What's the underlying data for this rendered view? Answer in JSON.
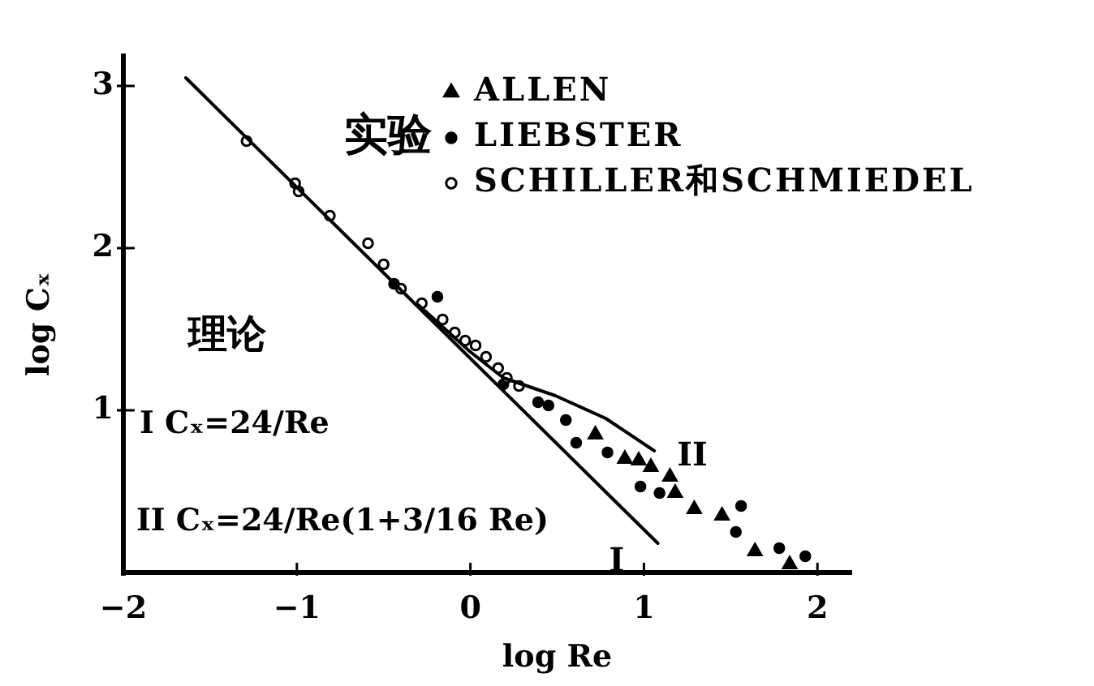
{
  "chart_data": {
    "type": "scatter",
    "xlabel": "log Re",
    "ylabel": "log Cₓ",
    "xlim": [
      -2,
      2.2
    ],
    "ylim": [
      0,
      3.2
    ],
    "xticks": [
      -2,
      -1,
      0,
      1,
      2
    ],
    "yticks": [
      1,
      2,
      3
    ],
    "legend": "top right",
    "legend_title": "实验",
    "series": [
      {
        "name": "ALLEN",
        "marker": "triangle",
        "color": "#000000",
        "x": [
          0.72,
          0.89,
          0.97,
          1.04,
          1.15,
          1.18,
          1.29,
          1.45,
          1.64,
          1.84
        ],
        "values": [
          0.85,
          0.7,
          0.69,
          0.65,
          0.59,
          0.49,
          0.39,
          0.35,
          0.13,
          0.05
        ]
      },
      {
        "name": "LIEBSTER",
        "marker": "circle",
        "color": "#000000",
        "x": [
          -0.44,
          -0.19,
          0.19,
          0.39,
          0.45,
          0.55,
          0.61,
          0.79,
          0.98,
          1.09,
          1.53,
          1.56,
          1.78,
          1.93
        ],
        "values": [
          1.78,
          1.7,
          1.16,
          1.05,
          1.03,
          0.94,
          0.8,
          0.74,
          0.53,
          0.49,
          0.25,
          0.41,
          0.15,
          0.1
        ]
      },
      {
        "name": "SCHILLER和SCHMIEDEL",
        "marker": "circle",
        "color": "#ffffff",
        "x": [
          -1.29,
          -1.01,
          -0.99,
          -0.81,
          -0.59,
          -0.5,
          -0.4,
          -0.28,
          -0.16,
          -0.09,
          -0.03,
          0.03,
          0.09,
          0.16,
          0.21,
          0.28
        ],
        "values": [
          2.66,
          2.4,
          2.35,
          2.2,
          2.03,
          1.9,
          1.75,
          1.66,
          1.56,
          1.48,
          1.43,
          1.4,
          1.33,
          1.26,
          1.2,
          1.15
        ]
      },
      {
        "name": "I",
        "type": "line",
        "marker": "none",
        "color": "#000000",
        "x": [
          -1.64,
          1.08
        ],
        "values": [
          3.05,
          0.18
        ]
      },
      {
        "name": "II",
        "type": "line",
        "marker": "none",
        "color": "#000000",
        "x": [
          -0.3,
          0,
          0.19,
          0.49,
          0.78,
          1.06
        ],
        "values": [
          1.65,
          1.36,
          1.2,
          1.09,
          0.95,
          0.75
        ]
      }
    ],
    "annotations": [
      "理论",
      "I Cₓ=24/Re",
      "II Cₓ=24/Re(1+3/16 Re)"
    ]
  }
}
